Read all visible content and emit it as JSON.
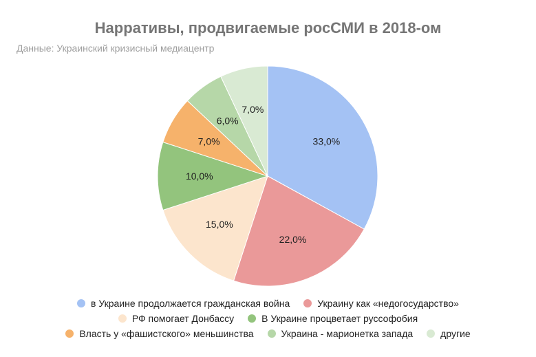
{
  "chart_data": {
    "type": "pie",
    "title": "Нарративы, продвигаемые росСМИ в 2018-ом",
    "subtitle": "Данные: Украинский кризисный медиацентр",
    "slices": [
      {
        "label": "в Украине продолжается гражданская война",
        "value": 33.0,
        "display": "33,0%",
        "color": "#a4c2f4"
      },
      {
        "label": "Украину как «недогосударство»",
        "value": 22.0,
        "display": "22,0%",
        "color": "#ea9999"
      },
      {
        "label": "РФ помогает Донбассу",
        "value": 15.0,
        "display": "15,0%",
        "color": "#fce5cd"
      },
      {
        "label": "В Украине процветает руссофобия",
        "value": 10.0,
        "display": "10,0%",
        "color": "#93c47d"
      },
      {
        "label": "Власть у «фашистского» меньшинства",
        "value": 7.0,
        "display": "7,0%",
        "color": "#f6b26b"
      },
      {
        "label": "Украина - марионетка запада",
        "value": 6.0,
        "display": "6,0%",
        "color": "#b6d7a8"
      },
      {
        "label": "другие",
        "value": 7.0,
        "display": "7,0%",
        "color": "#d9ead3"
      }
    ],
    "legend_position": "bottom"
  }
}
